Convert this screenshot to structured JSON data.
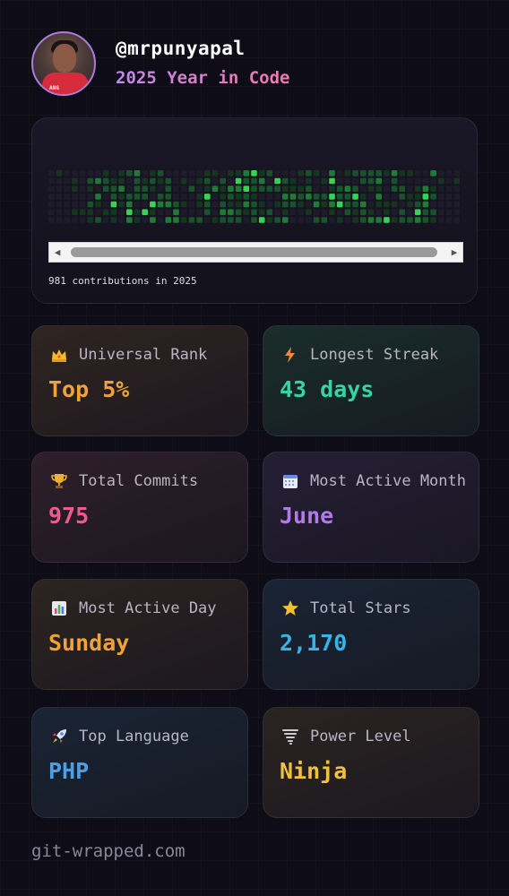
{
  "header": {
    "username": "@mrpunyapal",
    "subtitle": "2025 Year in Code",
    "avatar_badge": "ANG"
  },
  "contributions": {
    "summary": "981 contributions in 2025",
    "scroll_left_icon": "arrow-left-icon",
    "scroll_right_icon": "arrow-right-icon"
  },
  "stats": [
    {
      "key": "rank",
      "icon": "crown-icon",
      "label": "Universal Rank",
      "value": "Top 5%",
      "color": "#f0a13a"
    },
    {
      "key": "streak",
      "icon": "lightning-icon",
      "label": "Longest Streak",
      "value": "43 days",
      "color": "#34d3a8"
    },
    {
      "key": "commits",
      "icon": "trophy-icon",
      "label": "Total Commits",
      "value": "975",
      "color": "#f05a8c"
    },
    {
      "key": "month",
      "icon": "calendar-icon",
      "label": "Most Active Month",
      "value": "June",
      "color": "#b07ae8"
    },
    {
      "key": "day",
      "icon": "bar-chart-icon",
      "label": "Most Active Day",
      "value": "Sunday",
      "color": "#f0a13a"
    },
    {
      "key": "stars",
      "icon": "star-icon",
      "label": "Total Stars",
      "value": "2,170",
      "color": "#3ab4e8"
    },
    {
      "key": "language",
      "icon": "rocket-icon",
      "label": "Top Language",
      "value": "PHP",
      "color": "#4aa0e8"
    },
    {
      "key": "power",
      "icon": "tornado-icon",
      "label": "Power Level",
      "value": "Ninja",
      "color": "#f0c040"
    }
  ],
  "footer": {
    "site": "git-wrapped.com"
  }
}
